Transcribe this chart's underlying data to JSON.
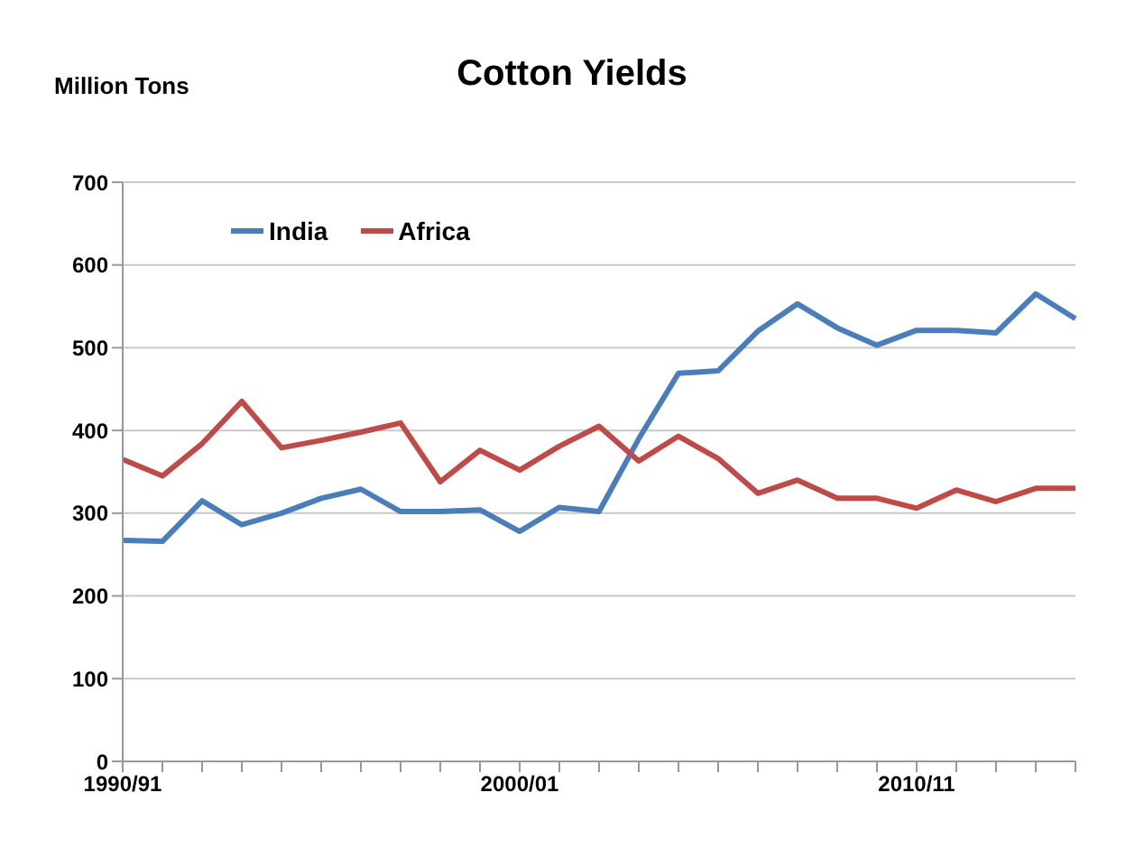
{
  "chart_data": {
    "type": "line",
    "title": "Cotton Yields",
    "ylabel": "Million Tons",
    "categories": [
      "1990/91",
      null,
      null,
      null,
      null,
      null,
      null,
      null,
      null,
      null,
      "2000/01",
      null,
      null,
      null,
      null,
      null,
      null,
      null,
      null,
      null,
      "2010/11",
      null,
      null,
      null,
      null
    ],
    "series": [
      {
        "name": "India",
        "color": "#4a7ebb",
        "values": [
          267,
          266,
          315,
          286,
          300,
          318,
          329,
          302,
          302,
          304,
          278,
          307,
          302,
          390,
          469,
          472,
          520,
          553,
          524,
          503,
          521,
          521,
          518,
          565,
          535
        ]
      },
      {
        "name": "Africa",
        "color": "#be4b48",
        "values": [
          365,
          345,
          384,
          435,
          379,
          388,
          398,
          409,
          338,
          376,
          352,
          381,
          405,
          363,
          393,
          366,
          324,
          340,
          318,
          318,
          306,
          328,
          314,
          330,
          330
        ]
      }
    ],
    "ylim": [
      0,
      700
    ],
    "yticks": [
      0,
      100,
      200,
      300,
      400,
      500,
      600,
      700
    ],
    "grid": "y",
    "legend": "top left",
    "marker": "none",
    "line_style": "solid"
  }
}
